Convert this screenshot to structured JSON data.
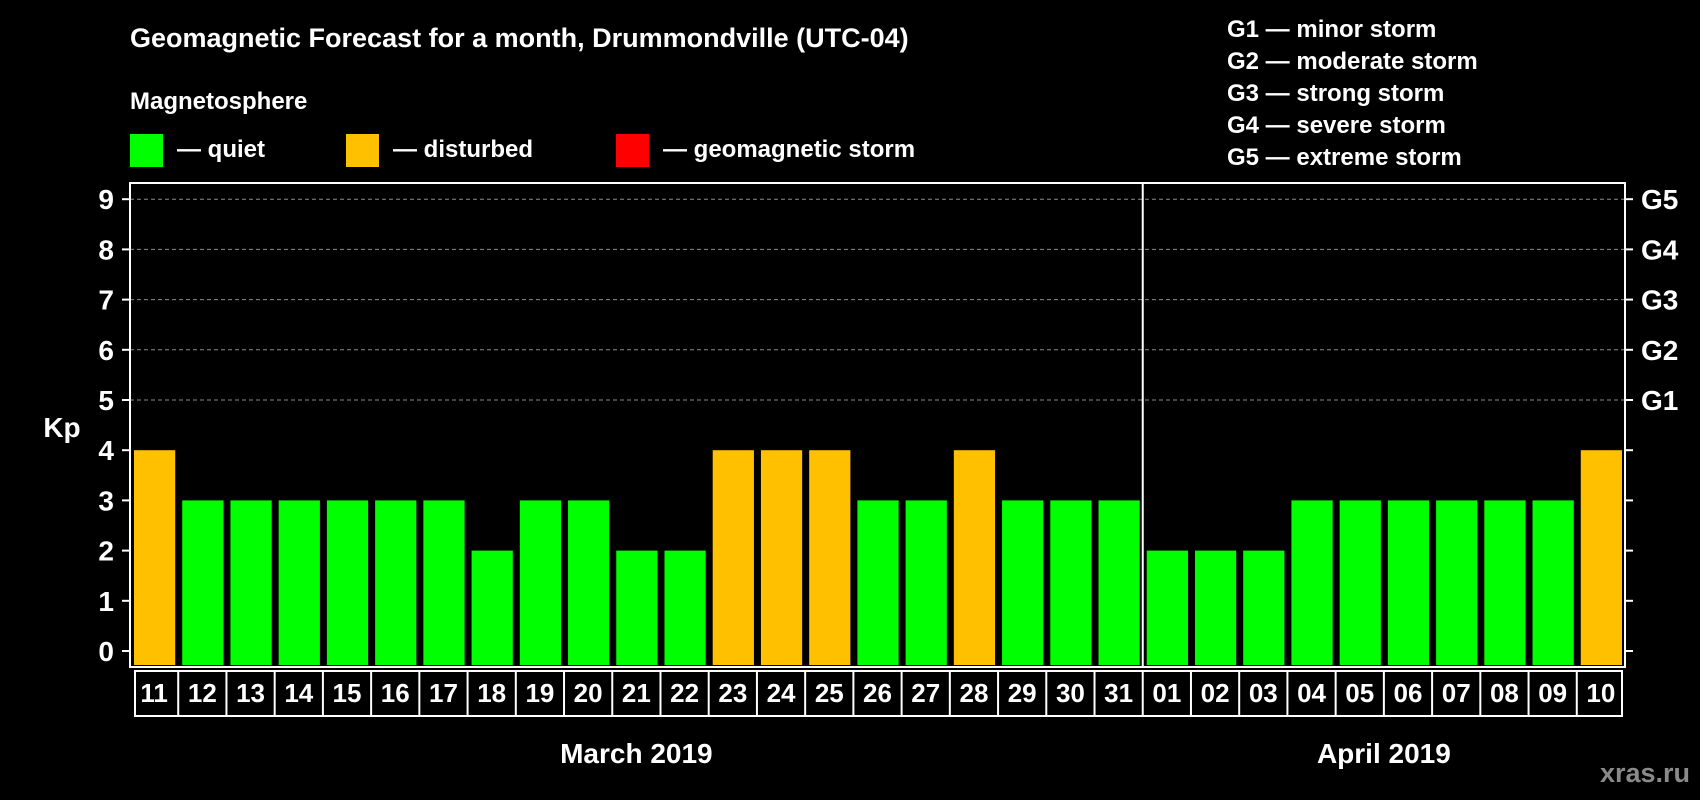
{
  "title": "Geomagnetic Forecast for a month, Drummondville (UTC-04)",
  "legend": {
    "heading": "Magnetosphere",
    "items": [
      {
        "label": "— quiet",
        "color": "#00ff00"
      },
      {
        "label": "— disturbed",
        "color": "#ffc000"
      },
      {
        "label": "— geomagnetic storm",
        "color": "#ff0000"
      }
    ]
  },
  "storm_scale": [
    "G1 — minor storm",
    "G2 — moderate storm",
    "G3 — strong storm",
    "G4 — severe storm",
    "G5 — extreme storm"
  ],
  "watermark": "xras.ru",
  "chart_data": {
    "type": "bar",
    "title": "Geomagnetic Forecast for a month, Drummondville (UTC-04)",
    "ylabel": "Kp",
    "ylim": [
      0,
      9
    ],
    "yticks": [
      "0",
      "1",
      "2",
      "3",
      "4",
      "5",
      "6",
      "7",
      "8",
      "9"
    ],
    "right_ticks": [
      {
        "kp": 5,
        "label": "G1"
      },
      {
        "kp": 6,
        "label": "G2"
      },
      {
        "kp": 7,
        "label": "G3"
      },
      {
        "kp": 8,
        "label": "G4"
      },
      {
        "kp": 9,
        "label": "G5"
      }
    ],
    "months": [
      {
        "label": "March 2019",
        "days": 21
      },
      {
        "label": "April 2019",
        "days": 10
      }
    ],
    "categories": [
      "11",
      "12",
      "13",
      "14",
      "15",
      "16",
      "17",
      "18",
      "19",
      "20",
      "21",
      "22",
      "23",
      "24",
      "25",
      "26",
      "27",
      "28",
      "29",
      "30",
      "31",
      "01",
      "02",
      "03",
      "04",
      "05",
      "06",
      "07",
      "08",
      "09",
      "10"
    ],
    "values": [
      4,
      3,
      3,
      3,
      3,
      3,
      3,
      2,
      3,
      3,
      2,
      2,
      4,
      4,
      4,
      3,
      3,
      4,
      3,
      3,
      3,
      2,
      2,
      2,
      3,
      3,
      3,
      3,
      3,
      3,
      4
    ],
    "status": [
      "disturbed",
      "quiet",
      "quiet",
      "quiet",
      "quiet",
      "quiet",
      "quiet",
      "quiet",
      "quiet",
      "quiet",
      "quiet",
      "quiet",
      "disturbed",
      "disturbed",
      "disturbed",
      "quiet",
      "quiet",
      "disturbed",
      "quiet",
      "quiet",
      "quiet",
      "quiet",
      "quiet",
      "quiet",
      "quiet",
      "quiet",
      "quiet",
      "quiet",
      "quiet",
      "quiet",
      "disturbed"
    ],
    "colors": {
      "quiet": "#00ff00",
      "disturbed": "#ffc000",
      "storm": "#ff0000"
    },
    "grid": true
  }
}
